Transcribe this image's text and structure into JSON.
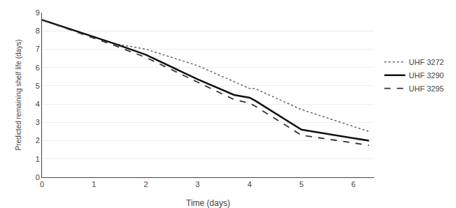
{
  "chart_data": {
    "type": "line",
    "xlabel": "Time (days)",
    "ylabel": "Predicted remaining shelf life (days)",
    "xlim": [
      0,
      6.4
    ],
    "ylim": [
      0,
      9
    ],
    "xticks": [
      0,
      1,
      2,
      3,
      4,
      5,
      6
    ],
    "yticks": [
      0,
      1,
      2,
      3,
      4,
      5,
      6,
      7,
      8,
      9
    ],
    "grid": "y",
    "legend": "right",
    "series": [
      {
        "name": "UHF 3272",
        "color": "#666666",
        "line_style": "dotted",
        "x": [
          0,
          1.4,
          2.0,
          3.0,
          4.0,
          4.1,
          5.0,
          6.3
        ],
        "values": [
          8.6,
          7.3,
          7.0,
          6.1,
          4.85,
          4.85,
          3.7,
          2.5
        ]
      },
      {
        "name": "UHF 3290",
        "color": "#111111",
        "line_style": "solid",
        "x": [
          0,
          1.4,
          2.0,
          3.0,
          3.7,
          4.0,
          4.1,
          5.0,
          6.3
        ],
        "values": [
          8.6,
          7.3,
          6.7,
          5.35,
          4.5,
          4.35,
          4.2,
          2.6,
          2.0
        ]
      },
      {
        "name": "UHF 3295",
        "color": "#333333",
        "line_style": "dashed",
        "x": [
          0,
          1.4,
          2.0,
          3.0,
          3.7,
          4.0,
          4.1,
          5.0,
          6.3
        ],
        "values": [
          8.6,
          7.2,
          6.55,
          5.2,
          4.25,
          4.05,
          3.9,
          2.3,
          1.75
        ]
      }
    ]
  }
}
